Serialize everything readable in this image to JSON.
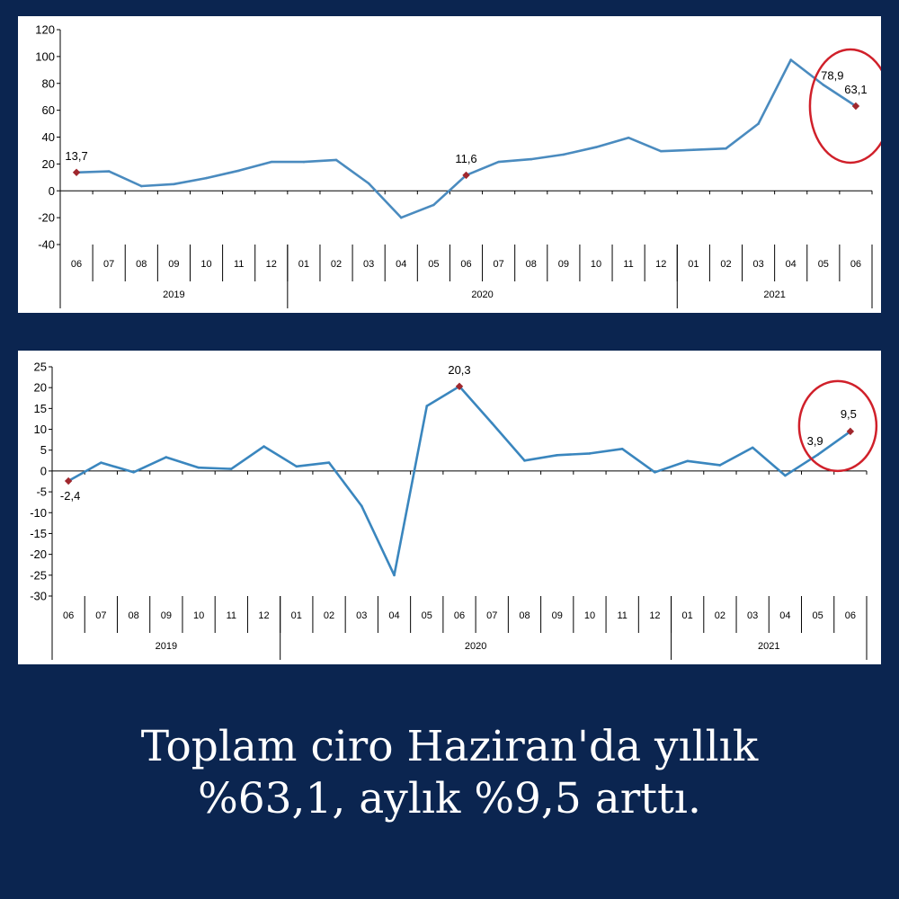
{
  "chart_data": [
    {
      "type": "line",
      "months": [
        "06",
        "07",
        "08",
        "09",
        "10",
        "11",
        "12",
        "01",
        "02",
        "03",
        "04",
        "05",
        "06",
        "07",
        "08",
        "09",
        "10",
        "11",
        "12",
        "01",
        "02",
        "03",
        "04",
        "05",
        "06"
      ],
      "years": [
        {
          "label": "2019",
          "start": 0,
          "end": 6
        },
        {
          "label": "2020",
          "start": 7,
          "end": 18
        },
        {
          "label": "2021",
          "start": 19,
          "end": 24
        }
      ],
      "values": [
        13.7,
        14.5,
        3.5,
        5.0,
        9.5,
        15.0,
        21.5,
        21.5,
        23.0,
        5.5,
        -20.0,
        -10.5,
        11.6,
        21.5,
        23.5,
        27.0,
        32.5,
        39.5,
        29.5,
        30.5,
        31.5,
        50.0,
        97.5,
        78.9,
        63.1
      ],
      "ylim": [
        -40,
        120
      ],
      "yticks": [
        120,
        100,
        80,
        60,
        40,
        20,
        0,
        -20,
        -40
      ],
      "point_labels": [
        {
          "index": 0,
          "text": "13,7"
        },
        {
          "index": 12,
          "text": "11,6"
        },
        {
          "index": 23,
          "text": "78,9"
        },
        {
          "index": 24,
          "text": "63,1"
        }
      ],
      "markers": [
        0,
        12,
        24
      ],
      "highlight_index": 24,
      "line_color": "#4a8bbf",
      "marker_color": "#a0272d",
      "circle_color": "#d0202a"
    },
    {
      "type": "line",
      "months": [
        "06",
        "07",
        "08",
        "09",
        "10",
        "11",
        "12",
        "01",
        "02",
        "03",
        "04",
        "05",
        "06",
        "07",
        "08",
        "09",
        "10",
        "11",
        "12",
        "01",
        "02",
        "03",
        "04",
        "05",
        "06"
      ],
      "years": [
        {
          "label": "2019",
          "start": 0,
          "end": 6
        },
        {
          "label": "2020",
          "start": 7,
          "end": 18
        },
        {
          "label": "2021",
          "start": 19,
          "end": 24
        }
      ],
      "values": [
        -2.4,
        2.0,
        -0.3,
        3.3,
        0.8,
        0.5,
        5.9,
        1.1,
        2.0,
        -8.4,
        -25.0,
        15.6,
        20.3,
        11.5,
        2.5,
        3.8,
        4.2,
        5.3,
        -0.3,
        2.4,
        1.4,
        5.6,
        -1.1,
        3.9,
        9.5
      ],
      "ylim": [
        -30,
        25
      ],
      "yticks": [
        25,
        20,
        15,
        10,
        5,
        0,
        -5,
        -10,
        -15,
        -20,
        -25,
        -30
      ],
      "point_labels": [
        {
          "index": 0,
          "text": "-2,4"
        },
        {
          "index": 12,
          "text": "20,3"
        },
        {
          "index": 23,
          "text": "3,9"
        },
        {
          "index": 24,
          "text": "9,5"
        }
      ],
      "markers": [
        0,
        12,
        24
      ],
      "highlight_index": 24,
      "line_color": "#3a86be",
      "marker_color": "#a0272d",
      "circle_color": "#d0202a"
    }
  ],
  "caption": {
    "line1": "Toplam ciro Haziran'da yıllık",
    "line2": "%63,1, aylık %9,5 arttı."
  }
}
